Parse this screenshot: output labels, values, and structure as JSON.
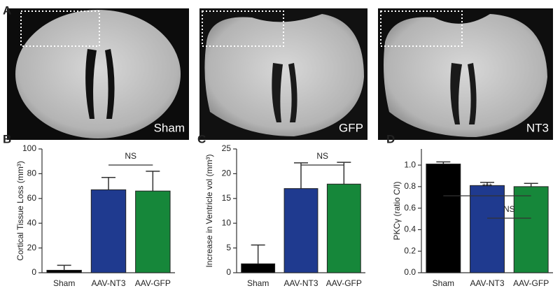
{
  "figure": {
    "panel_label": "A",
    "images": [
      {
        "label": "Sham"
      },
      {
        "label": "GFP"
      },
      {
        "label": "NT3"
      }
    ]
  },
  "chart_data": [
    {
      "type": "bar",
      "panel_label": "B",
      "ylabel": "Cortical Tissue Loss (mm³)",
      "categories": [
        "Sham",
        "AAV-NT3",
        "AAV-GFP"
      ],
      "values": [
        2,
        67,
        66
      ],
      "errors": [
        4,
        10,
        16
      ],
      "colors": [
        "#000000",
        "#1f3a8f",
        "#16873a"
      ],
      "ylim": [
        0,
        100
      ],
      "yticks": [
        0,
        20,
        40,
        60,
        80,
        100
      ],
      "annotations": [
        {
          "text": "NS"
        }
      ]
    },
    {
      "type": "bar",
      "panel_label": "C",
      "ylabel": "Increase in Ventricle vol (mm³)",
      "categories": [
        "Sham",
        "AAV-NT3",
        "AAV-GFP"
      ],
      "values": [
        1.8,
        17,
        17.9
      ],
      "errors": [
        3.8,
        5.2,
        4.4
      ],
      "colors": [
        "#000000",
        "#1f3a8f",
        "#16873a"
      ],
      "ylim": [
        0,
        25
      ],
      "yticks": [
        0,
        5,
        10,
        15,
        20,
        25
      ],
      "annotations": [
        {
          "text": "NS"
        }
      ]
    },
    {
      "type": "bar",
      "panel_label": "D",
      "ylabel": "PKCγ (ratio C/I)",
      "categories": [
        "Sham",
        "AAV-NT3",
        "AAV-GFP"
      ],
      "values": [
        1.01,
        0.81,
        0.8
      ],
      "errors": [
        0.02,
        0.03,
        0.03
      ],
      "colors": [
        "#000000",
        "#1f3a8f",
        "#16873a"
      ],
      "ylim": [
        0,
        1.15
      ],
      "yticks": [
        {
          "value": 0,
          "label": "0.0"
        },
        0.2,
        0.4,
        0.6,
        0.8,
        {
          "value": 1,
          "label": "1.0"
        }
      ],
      "annotations": [
        {
          "text": "***"
        },
        {
          "text": "NS"
        }
      ]
    }
  ]
}
